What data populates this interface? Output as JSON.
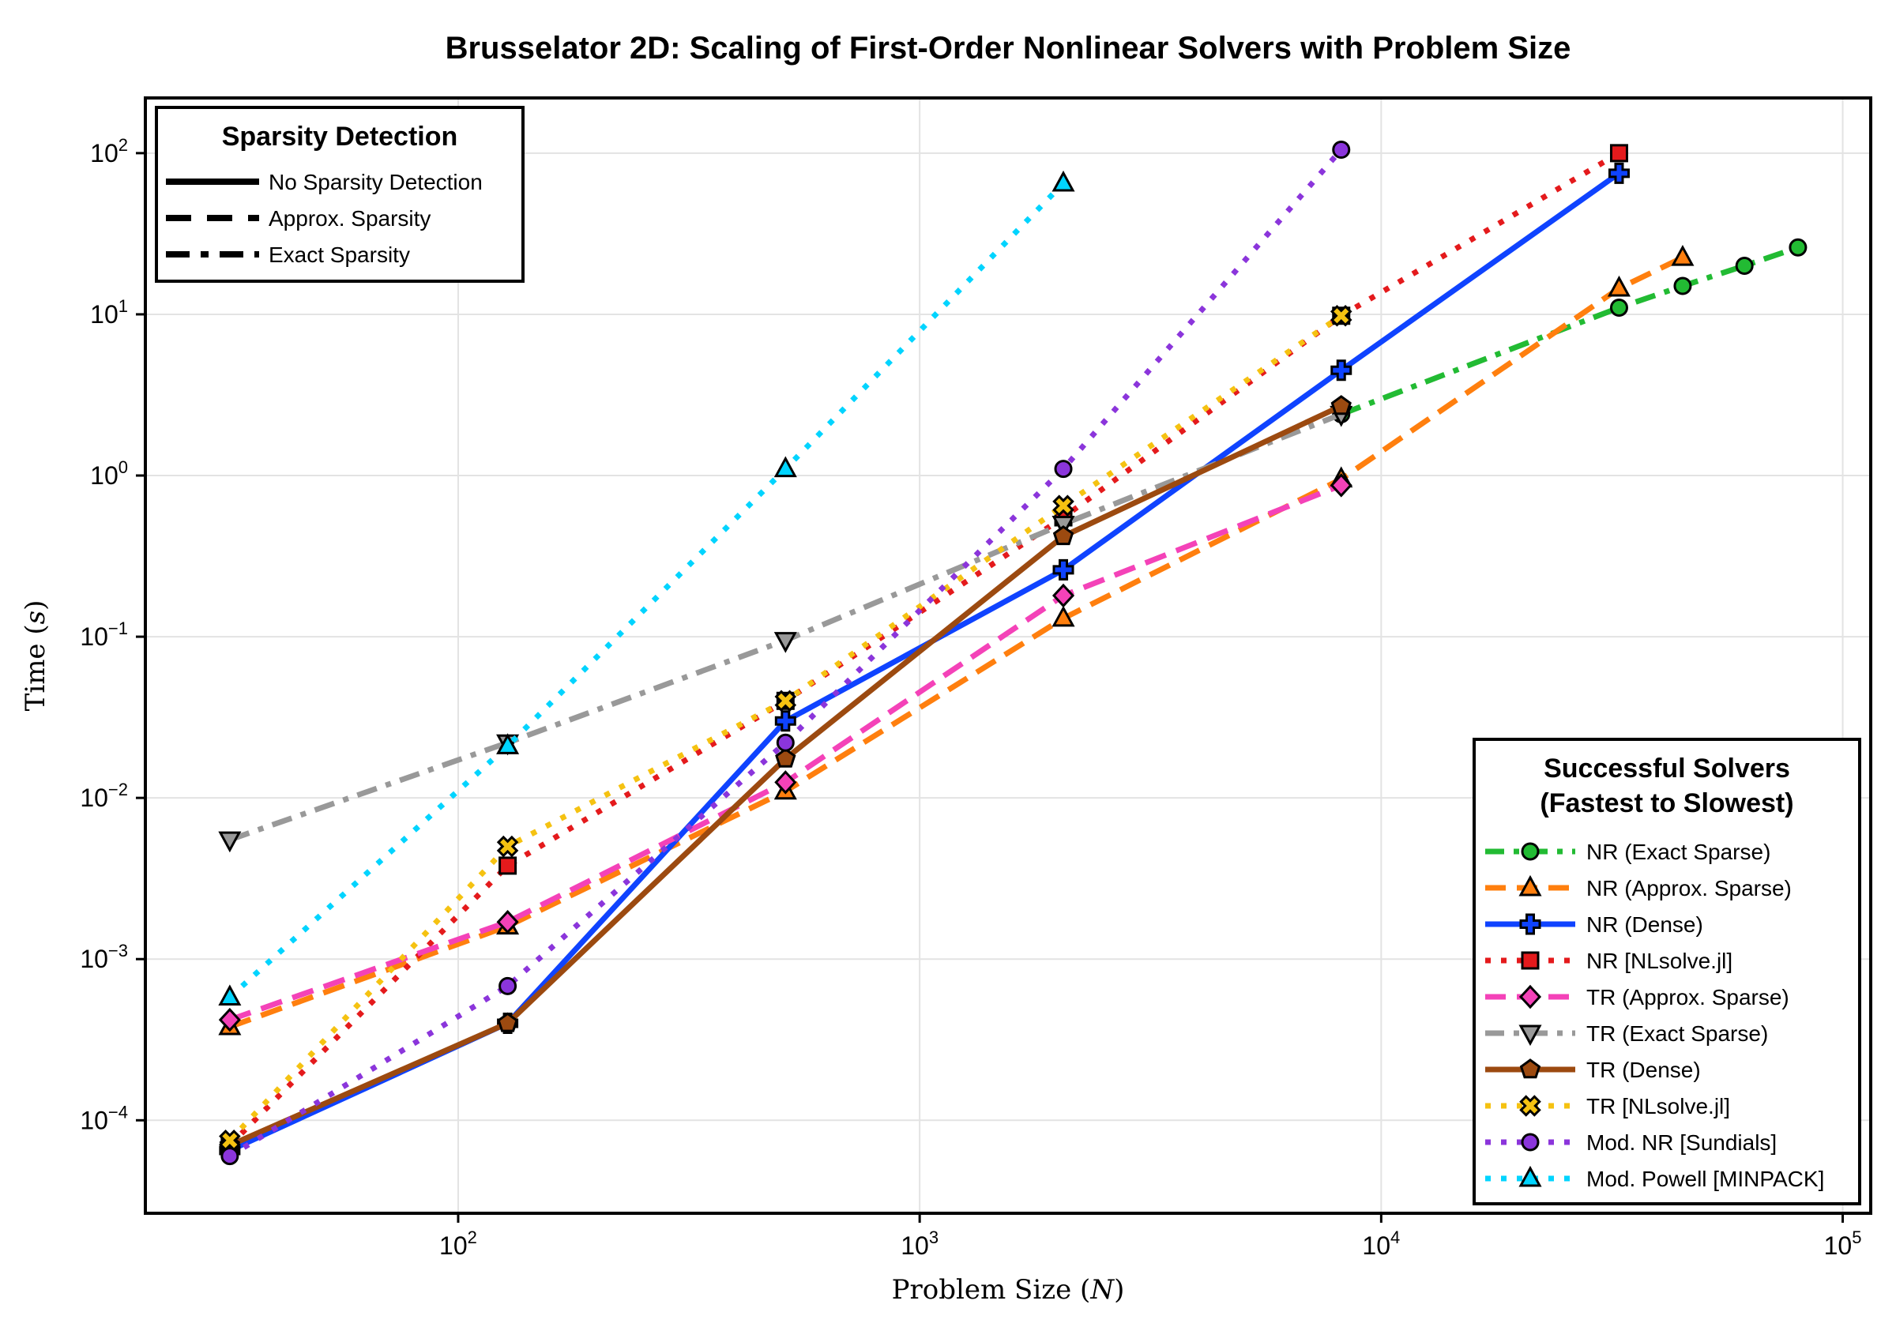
{
  "chart_data": {
    "type": "line",
    "title": "Brusselator 2D: Scaling of First-Order Nonlinear Solvers with Problem Size",
    "xlabel": "Problem Size",
    "xlabel_var": "N",
    "ylabel": "Time",
    "ylabel_var": "s",
    "xscale": "log",
    "yscale": "log",
    "xlim": [
      21,
      115000
    ],
    "ylim": [
      2.65e-05,
      220
    ],
    "x_ticks": [
      {
        "value": 100,
        "base": "10",
        "exp": "2"
      },
      {
        "value": 1000,
        "base": "10",
        "exp": "3"
      },
      {
        "value": 10000,
        "base": "10",
        "exp": "4"
      },
      {
        "value": 100000,
        "base": "10",
        "exp": "5"
      }
    ],
    "y_ticks": [
      {
        "value": 0.0001,
        "base": "10",
        "exp": "−4"
      },
      {
        "value": 0.001,
        "base": "10",
        "exp": "−3"
      },
      {
        "value": 0.01,
        "base": "10",
        "exp": "−2"
      },
      {
        "value": 0.1,
        "base": "10",
        "exp": "−1"
      },
      {
        "value": 1,
        "base": "10",
        "exp": "0"
      },
      {
        "value": 10,
        "base": "10",
        "exp": "1"
      },
      {
        "value": 100,
        "base": "10",
        "exp": "2"
      }
    ],
    "grid": true,
    "legend_style": {
      "title": "Sparsity Detection",
      "placement": "top-left",
      "entries": [
        {
          "label": "No Sparsity Detection",
          "dash": "solid"
        },
        {
          "label": "Approx. Sparsity",
          "dash": "dashed"
        },
        {
          "label": "Exact Sparsity",
          "dash": "dashdot"
        }
      ]
    },
    "legend_solvers": {
      "title_line1": "Successful Solvers",
      "title_line2": "(Fastest to Slowest)",
      "placement": "bottom-right"
    },
    "series": [
      {
        "name": "NR (Exact Sparse)",
        "color": "#22bb33",
        "dash": "dashdot",
        "marker": "circle",
        "x": [
          8192,
          32768,
          45000,
          61250,
          80000
        ],
        "y": [
          2.4,
          11,
          15,
          20,
          26
        ]
      },
      {
        "name": "NR (Approx. Sparse)",
        "color": "#ff7f0e",
        "dash": "dashed",
        "marker": "triangle-up",
        "x": [
          32,
          128,
          512,
          2048,
          8192,
          32768,
          45000
        ],
        "y": [
          0.00038,
          0.0016,
          0.011,
          0.13,
          0.95,
          14.5,
          22.5
        ]
      },
      {
        "name": "NR (Dense)",
        "color": "#0f43ff",
        "dash": "solid",
        "marker": "cross",
        "x": [
          32,
          128,
          512,
          2048,
          8192,
          32768
        ],
        "y": [
          6.5e-05,
          0.0004,
          0.03,
          0.26,
          4.5,
          75
        ]
      },
      {
        "name": "NR [NLsolve.jl]",
        "color": "#e41a1c",
        "dash": "dotted",
        "marker": "square",
        "x": [
          32,
          128,
          512,
          2048,
          8192,
          32768
        ],
        "y": [
          7e-05,
          0.0038,
          0.04,
          0.55,
          9.8,
          100
        ]
      },
      {
        "name": "TR (Approx. Sparse)",
        "color": "#f442b8",
        "dash": "dashed",
        "marker": "diamond",
        "x": [
          32,
          128,
          512,
          2048,
          8192
        ],
        "y": [
          0.00042,
          0.0017,
          0.0125,
          0.18,
          0.87
        ]
      },
      {
        "name": "TR (Exact Sparse)",
        "color": "#999999",
        "dash": "dashdot",
        "marker": "triangle-down",
        "x": [
          32,
          128,
          512,
          2048,
          8192
        ],
        "y": [
          0.0055,
          0.022,
          0.095,
          0.5,
          2.4
        ]
      },
      {
        "name": "TR (Dense)",
        "color": "#9c4a10",
        "dash": "solid",
        "marker": "pentagon",
        "x": [
          32,
          128,
          512,
          2048,
          8192
        ],
        "y": [
          7e-05,
          0.0004,
          0.0175,
          0.42,
          2.7
        ]
      },
      {
        "name": "TR [NLsolve.jl]",
        "color": "#f5c211",
        "dash": "dotted",
        "marker": "x-cross",
        "x": [
          32,
          128,
          512,
          2048,
          8192
        ],
        "y": [
          7.5e-05,
          0.005,
          0.04,
          0.65,
          9.8
        ]
      },
      {
        "name": "Mod. NR [Sundials]",
        "color": "#8b35db",
        "dash": "dotted",
        "marker": "circle",
        "x": [
          32,
          128,
          512,
          2048,
          8192
        ],
        "y": [
          6e-05,
          0.00068,
          0.022,
          1.1,
          105
        ]
      },
      {
        "name": "Mod. Powell [MINPACK]",
        "color": "#00d4ff",
        "dash": "dotted",
        "marker": "triangle-up",
        "x": [
          32,
          128,
          512,
          2048
        ],
        "y": [
          0.00058,
          0.021,
          1.1,
          65
        ]
      }
    ]
  }
}
